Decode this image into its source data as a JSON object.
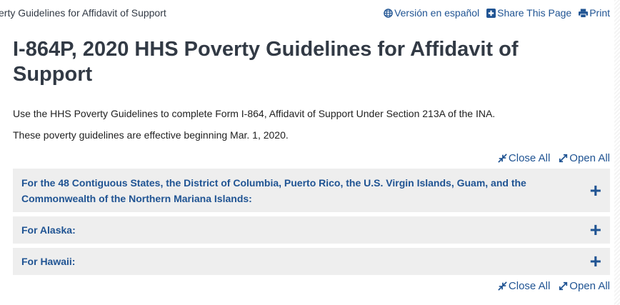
{
  "breadcrumb": "erty Guidelines for Affidavit of Support",
  "utility": [
    {
      "label": "Versión en español",
      "icon": "globe-icon"
    },
    {
      "label": "Share This Page",
      "icon": "plus-square-icon"
    },
    {
      "label": "Print",
      "icon": "printer-icon"
    }
  ],
  "title": "I-864P, 2020 HHS Poverty Guidelines for Affidavit of Support",
  "intro": "Use the HHS Poverty Guidelines to complete Form I-864, Affidavit of Support Under Section 213A of the INA.",
  "effective": "These poverty guidelines are effective beginning Mar. 1, 2020.",
  "controls": {
    "close": "Close All",
    "open": "Open All"
  },
  "accordion": [
    {
      "label": "For the 48 Contiguous States, the District of Columbia, Puerto Rico, the U.S. Virgin Islands, Guam, and the Commonwealth of the Northern Mariana Islands:"
    },
    {
      "label": "For Alaska:"
    },
    {
      "label": "For Hawaii:"
    }
  ],
  "colors": {
    "link": "#205493",
    "panel": "#eeeeee"
  }
}
